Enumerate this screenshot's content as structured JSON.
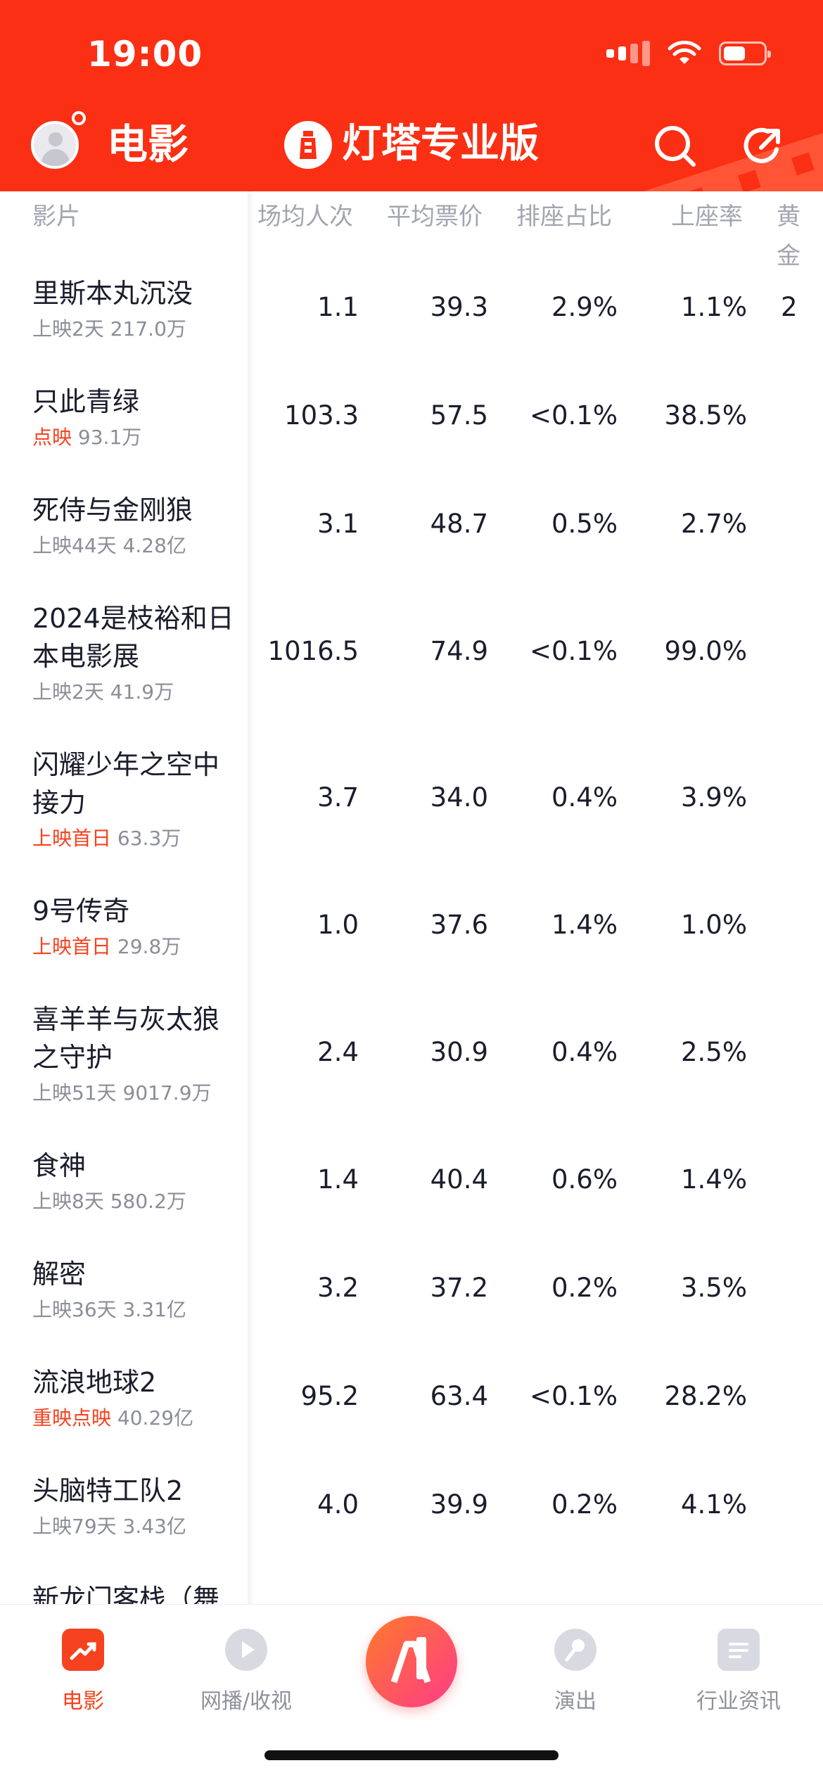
{
  "status_bar": {
    "time": "19:00"
  },
  "header": {
    "section_title": "电影",
    "brand_title": "灯塔专业版"
  },
  "table": {
    "headers": [
      "影片",
      "场均人次",
      "平均票价",
      "排座占比",
      "上座率",
      "黄金"
    ],
    "rows": [
      {
        "name": "里斯本丸沉没",
        "status": "上映2天",
        "status_hot": false,
        "gross": "217.0万",
        "c1": "1.1",
        "c2": "39.3",
        "c3": "2.9%",
        "c4": "1.1%",
        "c5": "2"
      },
      {
        "name": "只此青绿",
        "status": "点映",
        "status_hot": true,
        "gross": "93.1万",
        "c1": "103.3",
        "c2": "57.5",
        "c3": "<0.1%",
        "c4": "38.5%",
        "c5": ""
      },
      {
        "name": "死侍与金刚狼",
        "status": "上映44天",
        "status_hot": false,
        "gross": "4.28亿",
        "c1": "3.1",
        "c2": "48.7",
        "c3": "0.5%",
        "c4": "2.7%",
        "c5": ""
      },
      {
        "name": "2024是枝裕和日本电影展",
        "status": "上映2天",
        "status_hot": false,
        "gross": "41.9万",
        "c1": "1016.5",
        "c2": "74.9",
        "c3": "<0.1%",
        "c4": "99.0%",
        "c5": ""
      },
      {
        "name": "闪耀少年之空中接力",
        "status": "上映首日",
        "status_hot": true,
        "gross": "63.3万",
        "c1": "3.7",
        "c2": "34.0",
        "c3": "0.4%",
        "c4": "3.9%",
        "c5": ""
      },
      {
        "name": "9号传奇",
        "status": "上映首日",
        "status_hot": true,
        "gross": "29.8万",
        "c1": "1.0",
        "c2": "37.6",
        "c3": "1.4%",
        "c4": "1.0%",
        "c5": ""
      },
      {
        "name": "喜羊羊与灰太狼之守护",
        "status": "上映51天",
        "status_hot": false,
        "gross": "9017.9万",
        "c1": "2.4",
        "c2": "30.9",
        "c3": "0.4%",
        "c4": "2.5%",
        "c5": ""
      },
      {
        "name": "食神",
        "status": "上映8天",
        "status_hot": false,
        "gross": "580.2万",
        "c1": "1.4",
        "c2": "40.4",
        "c3": "0.6%",
        "c4": "1.4%",
        "c5": ""
      },
      {
        "name": "解密",
        "status": "上映36天",
        "status_hot": false,
        "gross": "3.31亿",
        "c1": "3.2",
        "c2": "37.2",
        "c3": "0.2%",
        "c4": "3.5%",
        "c5": ""
      },
      {
        "name": "流浪地球2",
        "status": "重映点映",
        "status_hot": true,
        "gross": "40.29亿",
        "c1": "95.2",
        "c2": "63.4",
        "c3": "<0.1%",
        "c4": "28.2%",
        "c5": ""
      },
      {
        "name": "头脑特工队2",
        "status": "上映79天",
        "status_hot": false,
        "gross": "3.43亿",
        "c1": "4.0",
        "c2": "39.9",
        "c3": "0.2%",
        "c4": "4.1%",
        "c5": ""
      },
      {
        "name": "新龙门客栈（舞",
        "status": "",
        "status_hot": false,
        "gross": "",
        "c1": "",
        "c2": "",
        "c3": "",
        "c4": "",
        "c5": ""
      }
    ]
  },
  "bottom_nav": {
    "items": [
      {
        "label": "电影",
        "icon": "trend-chart-icon",
        "active": true
      },
      {
        "label": "网播/收视",
        "icon": "play-icon",
        "active": false
      },
      {
        "label": "",
        "icon": "ai-lighthouse-icon",
        "active": false
      },
      {
        "label": "演出",
        "icon": "microphone-icon",
        "active": false
      },
      {
        "label": "行业资讯",
        "icon": "news-icon",
        "active": false
      }
    ]
  },
  "colors": {
    "brand": "#fa2f14",
    "accent_text": "#f6421f",
    "muted": "#8b8d98"
  }
}
